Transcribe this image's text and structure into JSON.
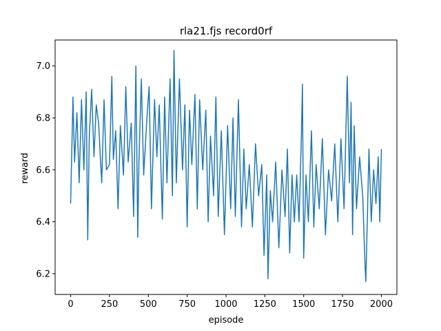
{
  "chart_data": {
    "type": "line",
    "title": "rla21.fjs record0rf",
    "xlabel": "episode",
    "ylabel": "reward",
    "xlim": [
      -100,
      2100
    ],
    "ylim": [
      6.12,
      7.1
    ],
    "x_ticks": [
      0,
      250,
      500,
      750,
      1000,
      1250,
      1500,
      1750,
      2000
    ],
    "y_ticks": [
      6.2,
      6.4,
      6.6,
      6.8,
      7.0
    ],
    "x_tick_labels": [
      "0",
      "250",
      "500",
      "750",
      "1000",
      "1250",
      "1500",
      "1750",
      "2000"
    ],
    "y_tick_labels": [
      "6.2",
      "6.4",
      "6.6",
      "6.8",
      "7.0"
    ],
    "grid": false,
    "series": [
      {
        "color": "#1f77b4",
        "x": [
          0,
          15,
          25,
          40,
          55,
          70,
          85,
          100,
          110,
          120,
          135,
          150,
          165,
          180,
          200,
          215,
          230,
          250,
          265,
          275,
          290,
          305,
          320,
          340,
          355,
          370,
          390,
          405,
          420,
          432,
          440,
          455,
          470,
          490,
          505,
          520,
          540,
          555,
          570,
          590,
          605,
          620,
          640,
          655,
          665,
          680,
          700,
          720,
          735,
          750,
          765,
          780,
          800,
          815,
          830,
          850,
          870,
          885,
          900,
          920,
          935,
          950,
          970,
          990,
          1010,
          1030,
          1045,
          1060,
          1080,
          1100,
          1115,
          1130,
          1150,
          1170,
          1190,
          1210,
          1230,
          1245,
          1262,
          1270,
          1285,
          1300,
          1320,
          1340,
          1360,
          1380,
          1395,
          1410,
          1425,
          1440,
          1455,
          1470,
          1485,
          1492,
          1500,
          1515,
          1530,
          1550,
          1565,
          1580,
          1600,
          1620,
          1640,
          1660,
          1680,
          1700,
          1720,
          1740,
          1760,
          1780,
          1795,
          1805,
          1815,
          1825,
          1840,
          1860,
          1880,
          1895,
          1900,
          1910,
          1920,
          1935,
          1950,
          1965,
          1980,
          1990,
          2000
        ],
        "y": [
          6.47,
          6.88,
          6.63,
          6.82,
          6.55,
          6.87,
          6.6,
          6.9,
          6.33,
          6.73,
          6.91,
          6.65,
          6.85,
          6.78,
          6.55,
          6.87,
          6.6,
          6.62,
          6.96,
          6.64,
          6.75,
          6.45,
          6.77,
          6.58,
          6.92,
          6.63,
          6.78,
          6.42,
          7.0,
          6.34,
          6.64,
          6.95,
          6.58,
          6.79,
          6.92,
          6.45,
          6.87,
          6.65,
          6.85,
          6.41,
          6.88,
          6.55,
          6.95,
          6.5,
          7.06,
          6.55,
          6.95,
          6.6,
          6.85,
          6.38,
          6.83,
          6.62,
          6.89,
          6.45,
          6.87,
          6.6,
          6.83,
          6.4,
          6.73,
          6.5,
          6.88,
          6.42,
          6.75,
          6.35,
          6.77,
          6.45,
          6.8,
          6.42,
          6.87,
          6.38,
          6.68,
          6.45,
          6.62,
          6.38,
          6.7,
          6.5,
          6.62,
          6.27,
          6.58,
          6.18,
          6.52,
          6.4,
          6.63,
          6.3,
          6.6,
          6.42,
          6.68,
          6.28,
          6.58,
          6.4,
          6.58,
          6.4,
          6.72,
          6.93,
          6.26,
          6.58,
          6.4,
          6.75,
          6.38,
          6.62,
          6.45,
          6.72,
          6.35,
          6.6,
          6.48,
          6.7,
          6.4,
          6.72,
          6.45,
          6.96,
          6.55,
          6.86,
          6.35,
          6.77,
          6.45,
          6.65,
          6.5,
          6.23,
          6.17,
          6.42,
          6.68,
          6.4,
          6.6,
          6.47,
          6.65,
          6.4,
          6.68
        ]
      }
    ]
  }
}
